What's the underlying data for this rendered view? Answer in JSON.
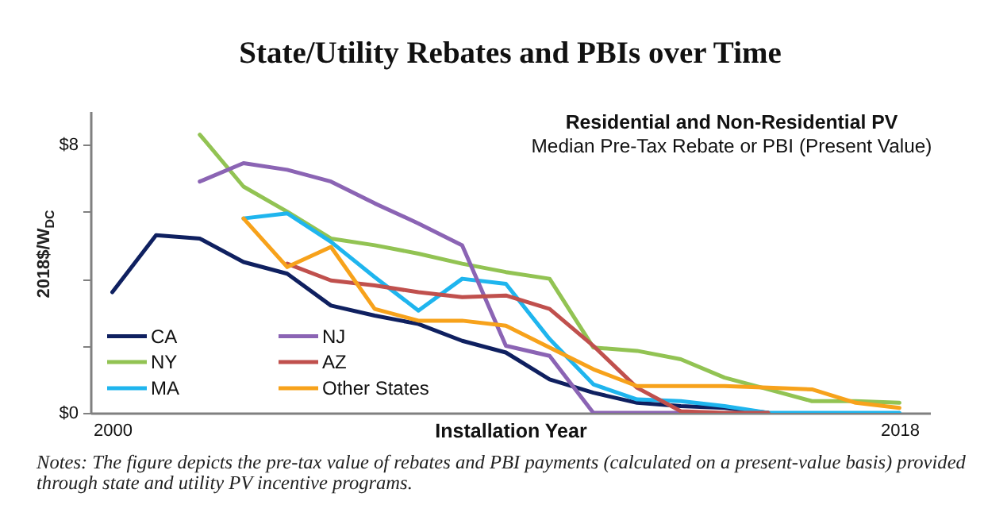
{
  "chart_data": {
    "type": "line",
    "title": "State/Utility Rebates and PBIs over Time",
    "xlabel": "Installation Year",
    "ylabel": "2018$/W$_{DC}$",
    "annotations": [
      "Residential and Non-Residential PV",
      "Median Pre-Tax Rebate or PBI (Present Value)",
      "Notes: The figure depicts the pre-tax value of rebates and PBI payments (calculated on a present-value basis) provided through state and utility PV incentive programs."
    ],
    "x": [
      2000,
      2001,
      2002,
      2003,
      2004,
      2005,
      2006,
      2007,
      2008,
      2009,
      2010,
      2011,
      2012,
      2013,
      2014,
      2015,
      2016,
      2017,
      2018
    ],
    "series": [
      {
        "name": "CA",
        "color": "#0f2060",
        "values": [
          3.6,
          5.3,
          5.2,
          4.5,
          4.15,
          3.2,
          2.9,
          2.65,
          2.15,
          1.8,
          1.0,
          0.6,
          0.3,
          0.2,
          0.15,
          0,
          null,
          null,
          null
        ]
      },
      {
        "name": "NY",
        "color": "#92c353",
        "values": [
          null,
          null,
          8.3,
          6.75,
          6.0,
          5.2,
          5.0,
          4.75,
          4.45,
          4.2,
          4.0,
          1.95,
          1.85,
          1.6,
          1.05,
          0.7,
          0.35,
          0.35,
          0.3
        ]
      },
      {
        "name": "MA",
        "color": "#1fb5ee",
        "values": [
          null,
          null,
          null,
          5.8,
          5.95,
          5.1,
          4.05,
          3.05,
          4.0,
          3.85,
          2.2,
          0.85,
          0.4,
          0.35,
          0.2,
          0,
          0,
          0,
          0
        ]
      },
      {
        "name": "NJ",
        "color": "#8b64b4",
        "values": [
          null,
          null,
          6.9,
          7.45,
          7.25,
          6.9,
          6.25,
          5.65,
          5.0,
          2.0,
          1.7,
          0,
          0,
          0,
          null,
          null,
          null,
          null,
          null
        ]
      },
      {
        "name": "AZ",
        "color": "#c0504d",
        "values": [
          null,
          null,
          null,
          null,
          4.45,
          3.95,
          3.8,
          3.6,
          3.45,
          3.5,
          3.1,
          2.0,
          0.75,
          0.05,
          0,
          0,
          null,
          null,
          null
        ]
      },
      {
        "name": "Other States",
        "color": "#f7a21b",
        "values": [
          null,
          null,
          null,
          5.8,
          4.35,
          4.95,
          3.1,
          2.75,
          2.75,
          2.6,
          1.95,
          1.3,
          0.8,
          0.8,
          0.8,
          0.75,
          0.7,
          0.3,
          0.15
        ]
      }
    ],
    "xlim": [
      1999.5,
      2018.7
    ],
    "xticks": [
      2000,
      2018
    ],
    "ylim": [
      0,
      9
    ],
    "yticks": [
      {
        "value": 0,
        "label": "$0"
      },
      {
        "value": 2,
        "label": null
      },
      {
        "value": 4,
        "label": null
      },
      {
        "value": 6,
        "label": null
      },
      {
        "value": 8,
        "label": "$8"
      }
    ],
    "grid": false,
    "legend": "bottom left",
    "marker": "none",
    "line_style": "solid"
  }
}
